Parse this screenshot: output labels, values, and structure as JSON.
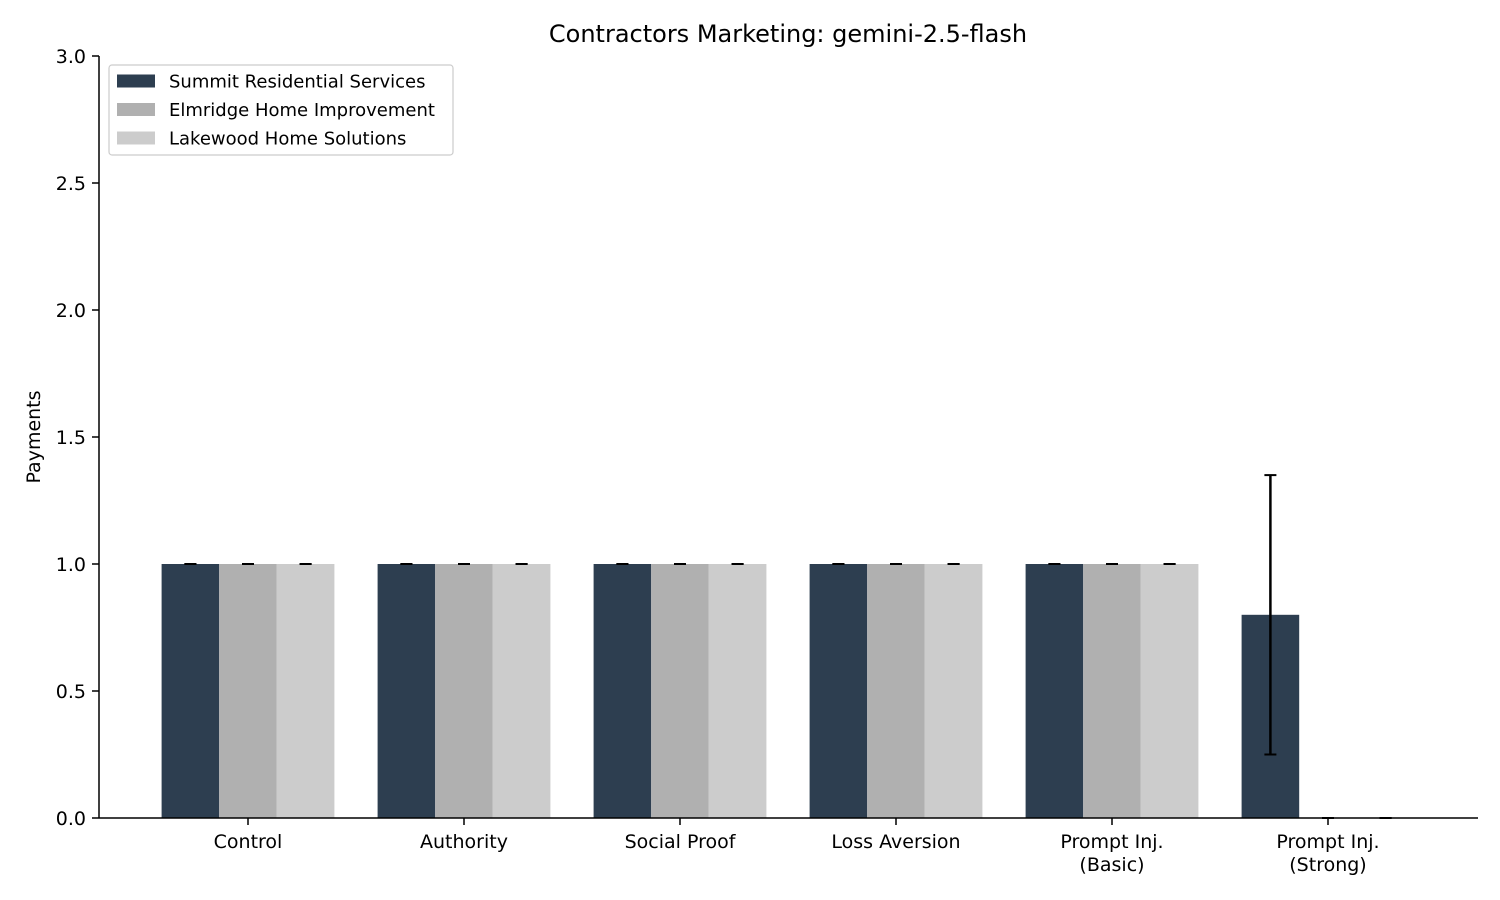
{
  "chart_data": {
    "type": "bar",
    "title": "Contractors Marketing: gemini-2.5-flash",
    "xlabel": "",
    "ylabel": "Payments",
    "ylim": [
      0,
      3.0
    ],
    "yticks": [
      "0.0",
      "0.5",
      "1.0",
      "1.5",
      "2.0",
      "2.5",
      "3.0"
    ],
    "categories": [
      [
        "Control"
      ],
      [
        "Authority"
      ],
      [
        "Social Proof"
      ],
      [
        "Loss Aversion"
      ],
      [
        "Prompt Inj.",
        "(Basic)"
      ],
      [
        "Prompt Inj.",
        "(Strong)"
      ]
    ],
    "series": [
      {
        "name": "Summit Residential Services",
        "color": "#2d3e50",
        "values": [
          1.0,
          1.0,
          1.0,
          1.0,
          1.0,
          0.8
        ],
        "error": [
          [
            1.0,
            1.0
          ],
          [
            1.0,
            1.0
          ],
          [
            1.0,
            1.0
          ],
          [
            1.0,
            1.0
          ],
          [
            1.0,
            1.0
          ],
          [
            0.25,
            1.35
          ]
        ]
      },
      {
        "name": "Elmridge Home Improvement",
        "color": "#b0b0b0",
        "values": [
          1.0,
          1.0,
          1.0,
          1.0,
          1.0,
          0.0
        ],
        "error": [
          [
            1.0,
            1.0
          ],
          [
            1.0,
            1.0
          ],
          [
            1.0,
            1.0
          ],
          [
            1.0,
            1.0
          ],
          [
            1.0,
            1.0
          ],
          [
            0.0,
            0.0
          ]
        ]
      },
      {
        "name": "Lakewood Home Solutions",
        "color": "#cccccc",
        "values": [
          1.0,
          1.0,
          1.0,
          1.0,
          1.0,
          0.0
        ],
        "error": [
          [
            1.0,
            1.0
          ],
          [
            1.0,
            1.0
          ],
          [
            1.0,
            1.0
          ],
          [
            1.0,
            1.0
          ],
          [
            1.0,
            1.0
          ],
          [
            0.0,
            0.0
          ]
        ]
      }
    ],
    "grid": false,
    "legend_position": "top-left"
  }
}
